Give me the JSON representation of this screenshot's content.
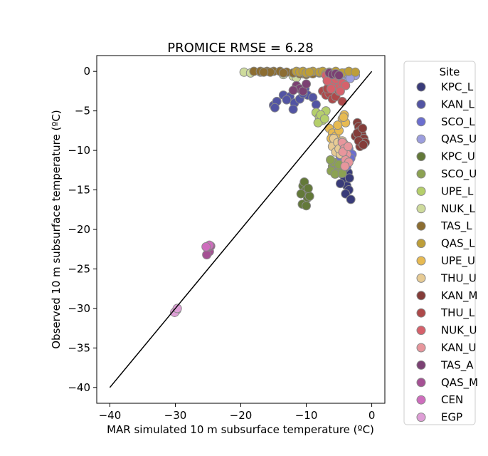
{
  "chart_data": {
    "type": "scatter",
    "title": "PROMICE RMSE = 6.28",
    "xlabel": "MAR simulated 10 m subsurface temperature (ºC)",
    "ylabel": "Observed 10 m subsurface temperature (ºC)",
    "xlim": [
      -42,
      2
    ],
    "ylim": [
      -42,
      2
    ],
    "xticks": [
      -40,
      -30,
      -20,
      -10,
      0
    ],
    "yticks": [
      0,
      -5,
      -10,
      -15,
      -20,
      -25,
      -30,
      -35,
      -40
    ],
    "x_tick_labels": [
      "−40",
      "−30",
      "−20",
      "−10",
      "0"
    ],
    "y_tick_labels": [
      "0",
      "−5",
      "−10",
      "−15",
      "−20",
      "−25",
      "−30",
      "−35",
      "−40"
    ],
    "grid": false,
    "one_to_one_line": {
      "from": [
        -40,
        -40
      ],
      "to": [
        0,
        0
      ],
      "color": "#000000"
    },
    "legend": {
      "title": "Site",
      "placement": "outside-right"
    },
    "marker_edge_color": "#8a8a8a",
    "series": [
      {
        "name": "KPC_L",
        "color": "#393b79",
        "points": [
          [
            -4.5,
            -13.0
          ],
          [
            -4.2,
            -13.8
          ],
          [
            -3.8,
            -14.5
          ],
          [
            -4.6,
            -12.5
          ],
          [
            -3.5,
            -15.0
          ],
          [
            -4.0,
            -15.5
          ],
          [
            -3.2,
            -16.2
          ],
          [
            -4.8,
            -14.2
          ],
          [
            -3.6,
            -12.8
          ],
          [
            -4.3,
            -11.8
          ],
          [
            -3.4,
            -13.5
          ],
          [
            -4.1,
            -12.2
          ]
        ]
      },
      {
        "name": "KAN_L",
        "color": "#5254a3",
        "points": [
          [
            -15.0,
            -4.3
          ],
          [
            -14.5,
            -3.8
          ],
          [
            -13.5,
            -3.0
          ],
          [
            -12.5,
            -3.2
          ],
          [
            -11.8,
            -4.0
          ],
          [
            -11.0,
            -3.5
          ],
          [
            -10.2,
            -2.2
          ],
          [
            -9.8,
            -3.0
          ],
          [
            -9.0,
            -3.3
          ],
          [
            -8.5,
            -4.2
          ],
          [
            -12.0,
            -4.8
          ],
          [
            -14.8,
            -4.6
          ],
          [
            -10.5,
            -2.8
          ],
          [
            -13.0,
            -3.6
          ]
        ]
      },
      {
        "name": "SCO_L",
        "color": "#6b6ecf",
        "points": [
          [
            -4.5,
            -10.2
          ],
          [
            -4.0,
            -9.6
          ],
          [
            -3.5,
            -9.8
          ],
          [
            -3.0,
            -10.5
          ],
          [
            -4.2,
            -11.3
          ],
          [
            -3.8,
            -12.0
          ],
          [
            -3.2,
            -11.0
          ],
          [
            -4.8,
            -10.8
          ]
        ]
      },
      {
        "name": "QAS_U",
        "color": "#9c9ede",
        "points": [
          [
            -5.0,
            -0.3
          ],
          [
            -4.5,
            -0.8
          ],
          [
            -3.8,
            -0.4
          ],
          [
            -3.0,
            -0.2
          ],
          [
            -2.5,
            -0.5
          ],
          [
            -5.5,
            -0.6
          ],
          [
            -4.0,
            -0.2
          ],
          [
            -3.3,
            -0.9
          ]
        ]
      },
      {
        "name": "KPC_U",
        "color": "#637939",
        "points": [
          [
            -10.5,
            -14.5
          ],
          [
            -10.2,
            -15.2
          ],
          [
            -9.8,
            -16.0
          ],
          [
            -10.6,
            -16.8
          ],
          [
            -10.0,
            -17.0
          ],
          [
            -9.5,
            -15.8
          ],
          [
            -10.3,
            -14.0
          ],
          [
            -9.7,
            -14.8
          ],
          [
            -10.8,
            -15.5
          ]
        ]
      },
      {
        "name": "SCO_U",
        "color": "#8ca252",
        "points": [
          [
            -6.0,
            -12.0
          ],
          [
            -5.5,
            -12.5
          ],
          [
            -5.8,
            -11.5
          ],
          [
            -5.2,
            -12.8
          ],
          [
            -4.8,
            -12.2
          ],
          [
            -6.2,
            -12.6
          ],
          [
            -5.0,
            -11.8
          ],
          [
            -5.6,
            -13.0
          ],
          [
            -4.5,
            -12.9
          ],
          [
            -6.3,
            -11.2
          ]
        ]
      },
      {
        "name": "UPE_L",
        "color": "#b5cf6b",
        "points": [
          [
            -8.5,
            -5.2
          ],
          [
            -8.0,
            -5.8
          ],
          [
            -7.5,
            -6.2
          ],
          [
            -7.0,
            -5.0
          ],
          [
            -8.2,
            -6.5
          ],
          [
            -7.8,
            -5.5
          ],
          [
            -7.2,
            -6.0
          ]
        ]
      },
      {
        "name": "NUK_L",
        "color": "#cedb9c",
        "points": [
          [
            -19.5,
            -0.1
          ],
          [
            -18.5,
            -0.2
          ],
          [
            -17.0,
            -0.1
          ],
          [
            -12.0,
            -0.6
          ],
          [
            -11.5,
            -0.8
          ],
          [
            -10.5,
            -0.3
          ],
          [
            -9.0,
            -0.2
          ],
          [
            -7.5,
            -0.1
          ],
          [
            -13.5,
            -0.4
          ]
        ]
      },
      {
        "name": "TAS_L",
        "color": "#8c6d31",
        "points": [
          [
            -18.0,
            0.0
          ],
          [
            -17.0,
            0.0
          ],
          [
            -16.0,
            0.0
          ],
          [
            -15.0,
            0.0
          ],
          [
            -14.0,
            0.0
          ],
          [
            -13.0,
            -0.1
          ],
          [
            -12.0,
            -0.2
          ],
          [
            -11.0,
            -0.3
          ],
          [
            -10.0,
            -0.4
          ],
          [
            -9.0,
            -0.3
          ],
          [
            -8.0,
            -0.2
          ],
          [
            -15.5,
            -0.1
          ],
          [
            -13.5,
            -0.2
          ],
          [
            -16.5,
            -0.1
          ]
        ]
      },
      {
        "name": "QAS_L",
        "color": "#bd9e39",
        "points": [
          [
            -11.5,
            0.0
          ],
          [
            -11.0,
            -0.1
          ],
          [
            -10.5,
            0.0
          ],
          [
            -10.0,
            -0.2
          ],
          [
            -9.0,
            0.0
          ],
          [
            -8.0,
            -0.1
          ],
          [
            -7.5,
            0.0
          ],
          [
            -6.5,
            -0.1
          ],
          [
            -5.5,
            0.0
          ],
          [
            -4.5,
            -0.2
          ],
          [
            -3.5,
            0.0
          ],
          [
            -2.5,
            -0.1
          ],
          [
            -7.0,
            -0.3
          ],
          [
            -9.5,
            -0.1
          ]
        ]
      },
      {
        "name": "UPE_U",
        "color": "#e7ba52",
        "points": [
          [
            -6.5,
            -7.2
          ],
          [
            -6.0,
            -7.8
          ],
          [
            -5.5,
            -8.2
          ],
          [
            -5.0,
            -7.5
          ],
          [
            -4.5,
            -6.0
          ],
          [
            -4.2,
            -5.5
          ],
          [
            -4.0,
            -6.5
          ],
          [
            -6.2,
            -8.5
          ],
          [
            -5.2,
            -6.8
          ],
          [
            -4.3,
            -5.8
          ]
        ]
      },
      {
        "name": "THU_U",
        "color": "#e7cb94",
        "points": [
          [
            -6.0,
            -9.5
          ],
          [
            -5.5,
            -10.2
          ],
          [
            -5.8,
            -8.5
          ],
          [
            -5.2,
            -9.0
          ],
          [
            -4.8,
            -10.5
          ],
          [
            -4.5,
            -8.8
          ],
          [
            -5.0,
            -9.8
          ],
          [
            -4.2,
            -9.2
          ]
        ]
      },
      {
        "name": "KAN_M",
        "color": "#843c39",
        "points": [
          [
            -2.2,
            -6.5
          ],
          [
            -2.0,
            -7.0
          ],
          [
            -1.8,
            -7.5
          ],
          [
            -1.5,
            -8.0
          ],
          [
            -1.2,
            -8.5
          ],
          [
            -1.0,
            -9.0
          ],
          [
            -2.5,
            -8.2
          ],
          [
            -1.8,
            -9.5
          ],
          [
            -2.2,
            -7.8
          ],
          [
            -1.4,
            -7.2
          ],
          [
            -2.0,
            -8.8
          ],
          [
            -1.3,
            -9.3
          ]
        ]
      },
      {
        "name": "THU_L",
        "color": "#ad494a",
        "points": [
          [
            -7.5,
            -2.5
          ],
          [
            -7.0,
            -3.0
          ],
          [
            -6.5,
            -2.8
          ],
          [
            -6.0,
            -3.5
          ],
          [
            -5.5,
            -3.2
          ],
          [
            -5.0,
            -2.5
          ],
          [
            -4.5,
            -3.8
          ],
          [
            -6.8,
            -2.2
          ],
          [
            -5.8,
            -2.0
          ]
        ]
      },
      {
        "name": "NUK_U",
        "color": "#d6616b",
        "points": [
          [
            -7.0,
            -0.5
          ],
          [
            -6.5,
            -1.0
          ],
          [
            -6.0,
            -1.5
          ],
          [
            -5.5,
            -1.0
          ],
          [
            -5.0,
            -2.0
          ],
          [
            -4.5,
            -1.5
          ],
          [
            -4.0,
            -1.8
          ],
          [
            -6.2,
            -2.2
          ],
          [
            -5.2,
            -0.6
          ],
          [
            -4.8,
            -2.5
          ],
          [
            -6.8,
            -1.2
          ]
        ]
      },
      {
        "name": "KAN_U",
        "color": "#e7969c",
        "points": [
          [
            -4.5,
            -9.0
          ],
          [
            -4.2,
            -9.8
          ],
          [
            -3.8,
            -10.5
          ],
          [
            -4.0,
            -11.2
          ],
          [
            -3.5,
            -11.5
          ],
          [
            -4.4,
            -10.2
          ],
          [
            -3.6,
            -9.5
          ],
          [
            -4.1,
            -12.0
          ]
        ]
      },
      {
        "name": "TAS_A",
        "color": "#7b4173",
        "points": [
          [
            -11.5,
            -1.8
          ],
          [
            -11.0,
            -2.2
          ],
          [
            -10.5,
            -2.5
          ],
          [
            -10.0,
            -1.6
          ],
          [
            -12.0,
            -2.4
          ],
          [
            -6.5,
            -0.2
          ],
          [
            -6.0,
            -0.4
          ],
          [
            -5.5,
            -0.3
          ],
          [
            -5.0,
            -0.5
          ]
        ]
      },
      {
        "name": "QAS_M",
        "color": "#a55194",
        "points": [
          [
            -25.0,
            -22.3
          ],
          [
            -24.8,
            -22.8
          ],
          [
            -25.2,
            -23.2
          ],
          [
            -24.6,
            -22.1
          ]
        ]
      },
      {
        "name": "CEN",
        "color": "#ce6dbd",
        "points": [
          [
            -24.8,
            -22.0
          ],
          [
            -25.3,
            -22.2
          ]
        ]
      },
      {
        "name": "EGP",
        "color": "#de9ed6",
        "points": [
          [
            -29.8,
            -30.2
          ],
          [
            -30.1,
            -30.5
          ],
          [
            -29.7,
            -30.0
          ]
        ]
      }
    ]
  }
}
